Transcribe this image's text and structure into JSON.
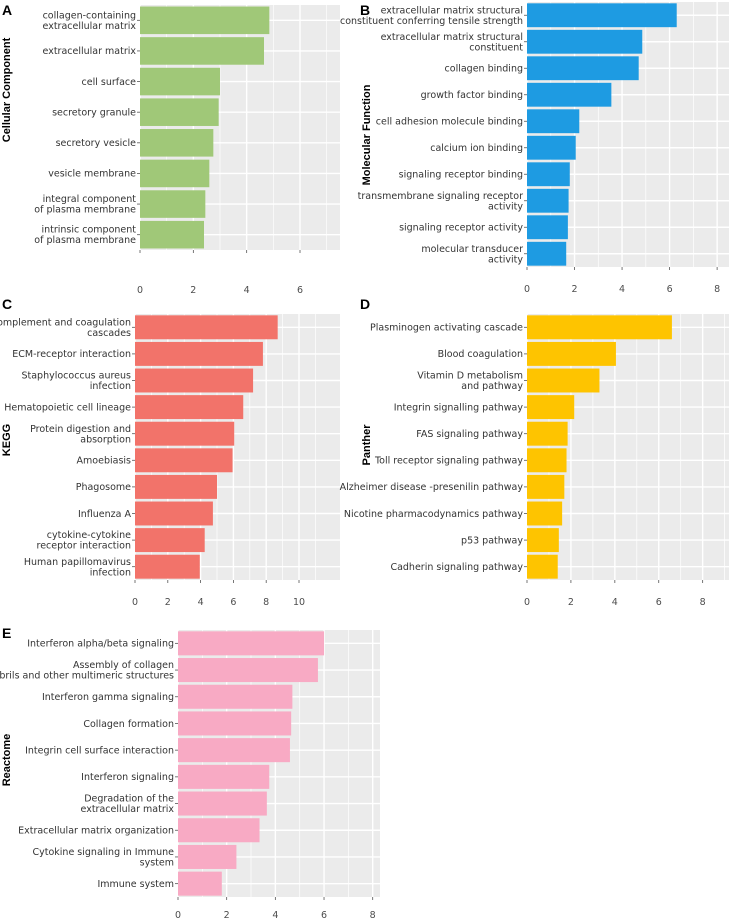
{
  "chart_data": [
    {
      "type": "bar",
      "orientation": "horizontal",
      "panel": "A",
      "ylabel": "Cellular Component",
      "color": "#a0c878",
      "xlim": [
        0,
        7.5
      ],
      "xticks": [
        "0",
        "2",
        "4",
        "6"
      ],
      "categories": [
        [
          "collagen-containing",
          "extracellular matrix"
        ],
        [
          "extracellular matrix"
        ],
        [
          "cell surface"
        ],
        [
          "secretory granule"
        ],
        [
          "secretory vesicle"
        ],
        [
          "vesicle membrane"
        ],
        [
          "integral component",
          "of plasma membrane"
        ],
        [
          "intrinsic component",
          "of plasma membrane"
        ]
      ],
      "values": [
        4.85,
        4.65,
        3.0,
        2.95,
        2.75,
        2.6,
        2.45,
        2.4
      ]
    },
    {
      "type": "bar",
      "orientation": "horizontal",
      "panel": "B",
      "ylabel": "Molecular Function",
      "color": "#1e9be2",
      "xlim": [
        0,
        8.5
      ],
      "xticks": [
        "0",
        "2",
        "4",
        "6",
        "8"
      ],
      "categories": [
        [
          "extracellular matrix structural",
          "constituent conferring tensile strength"
        ],
        [
          "extracellular matrix structural",
          "constituent"
        ],
        [
          "collagen binding"
        ],
        [
          "growth factor binding"
        ],
        [
          "cell adhesion molecule binding"
        ],
        [
          "calcium ion binding"
        ],
        [
          "signaling receptor binding"
        ],
        [
          "transmembrane signaling receptor",
          "activity"
        ],
        [
          "signaling receptor activity"
        ],
        [
          "molecular transducer",
          "activity"
        ]
      ],
      "values": [
        6.3,
        4.85,
        4.7,
        3.55,
        2.2,
        2.05,
        1.8,
        1.75,
        1.72,
        1.65
      ]
    },
    {
      "type": "bar",
      "orientation": "horizontal",
      "panel": "C",
      "ylabel": "KEGG",
      "color": "#f2736a",
      "xlim": [
        0,
        12.5
      ],
      "xticks": [
        "0",
        "2",
        "4",
        "6",
        "8",
        "10"
      ],
      "categories": [
        [
          "Complement and coagulation",
          "cascades"
        ],
        [
          "ECM-receptor interaction"
        ],
        [
          "Staphylococcus aureus",
          "infection"
        ],
        [
          "Hematopoietic cell lineage"
        ],
        [
          "Protein digestion and",
          "absorption"
        ],
        [
          "Amoebiasis"
        ],
        [
          "Phagosome"
        ],
        [
          "Influenza A"
        ],
        [
          "cytokine-cytokine",
          "receptor interaction"
        ],
        [
          "Human papillomavirus",
          "infection"
        ]
      ],
      "values": [
        8.7,
        7.8,
        7.2,
        6.6,
        6.05,
        5.95,
        5.0,
        4.75,
        4.25,
        3.95
      ]
    },
    {
      "type": "bar",
      "orientation": "horizontal",
      "panel": "D",
      "ylabel": "Panther",
      "color": "#fec400",
      "xlim": [
        0,
        9.2
      ],
      "xticks": [
        "0",
        "2",
        "4",
        "6",
        "8"
      ],
      "categories": [
        [
          "Plasminogen activating cascade"
        ],
        [
          "Blood coagulation"
        ],
        [
          "Vitamin D metabolism",
          "and pathway"
        ],
        [
          "Integrin signalling pathway"
        ],
        [
          "FAS signaling pathway"
        ],
        [
          "Toll receptor signaling pathway"
        ],
        [
          "Alzheimer disease -presenilin pathway"
        ],
        [
          "Nicotine pharmacodynamics pathway"
        ],
        [
          "p53 pathway"
        ],
        [
          "Cadherin signaling pathway"
        ]
      ],
      "values": [
        6.6,
        4.05,
        3.3,
        2.15,
        1.85,
        1.8,
        1.7,
        1.6,
        1.45,
        1.4
      ]
    },
    {
      "type": "bar",
      "orientation": "horizontal",
      "panel": "E",
      "ylabel": "Reactome",
      "color": "#f8aac4",
      "xlim": [
        0,
        8.3
      ],
      "xticks": [
        "0",
        "2",
        "4",
        "6",
        "8"
      ],
      "categories": [
        [
          "Interferon alpha/beta signaling"
        ],
        [
          "Assembly of collagen",
          "fibrils and other multimeric structures"
        ],
        [
          "Interferon gamma signaling"
        ],
        [
          "Collagen formation"
        ],
        [
          "Integrin cell surface interaction"
        ],
        [
          "Interferon signaling"
        ],
        [
          "Degradation of the",
          "extracellular matrix"
        ],
        [
          "Extracellular matrix organization"
        ],
        [
          "Cytokine signaling in Immune",
          "system"
        ],
        [
          "Immune system"
        ]
      ],
      "values": [
        6.0,
        5.75,
        4.7,
        4.65,
        4.6,
        3.75,
        3.65,
        3.35,
        2.4,
        1.8
      ]
    }
  ]
}
